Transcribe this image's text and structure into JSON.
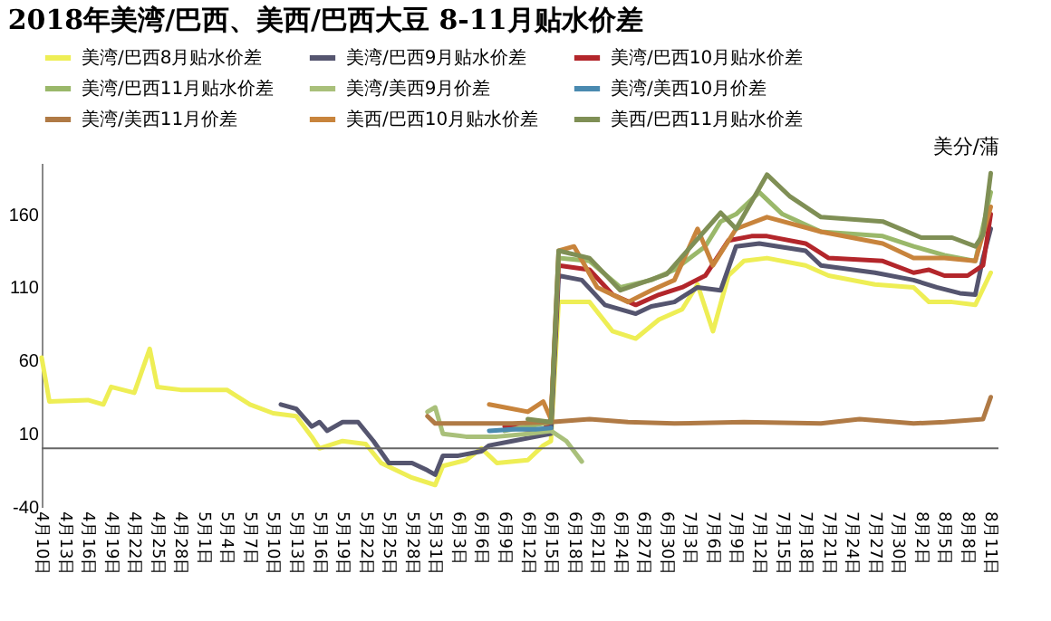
{
  "chart_data": {
    "type": "line",
    "title": "2018年美湾/巴西、美西/巴西大豆 8-11月贴水价差",
    "ylabel": "美分/蒲",
    "xlim": [
      "2018-04-10",
      "2018-08-12"
    ],
    "ylim": [
      -40,
      195
    ],
    "yticks": [
      -40,
      10,
      60,
      110,
      160
    ],
    "xticks": [
      {
        "value": "2018-04-10",
        "label": "4月10日"
      },
      {
        "value": "2018-04-13",
        "label": "4月13日"
      },
      {
        "value": "2018-04-16",
        "label": "4月16日"
      },
      {
        "value": "2018-04-19",
        "label": "4月19日"
      },
      {
        "value": "2018-04-22",
        "label": "4月22日"
      },
      {
        "value": "2018-04-25",
        "label": "4月25日"
      },
      {
        "value": "2018-04-28",
        "label": "4月28日"
      },
      {
        "value": "2018-05-01",
        "label": "5月1日"
      },
      {
        "value": "2018-05-04",
        "label": "5月4日"
      },
      {
        "value": "2018-05-07",
        "label": "5月7日"
      },
      {
        "value": "2018-05-10",
        "label": "5月10日"
      },
      {
        "value": "2018-05-13",
        "label": "5月13日"
      },
      {
        "value": "2018-05-16",
        "label": "5月16日"
      },
      {
        "value": "2018-05-19",
        "label": "5月19日"
      },
      {
        "value": "2018-05-22",
        "label": "5月22日"
      },
      {
        "value": "2018-05-25",
        "label": "5月25日"
      },
      {
        "value": "2018-05-28",
        "label": "5月28日"
      },
      {
        "value": "2018-05-31",
        "label": "5月31日"
      },
      {
        "value": "2018-06-03",
        "label": "6月3日"
      },
      {
        "value": "2018-06-06",
        "label": "6月6日"
      },
      {
        "value": "2018-06-09",
        "label": "6月9日"
      },
      {
        "value": "2018-06-12",
        "label": "6月12日"
      },
      {
        "value": "2018-06-15",
        "label": "6月15日"
      },
      {
        "value": "2018-06-18",
        "label": "6月18日"
      },
      {
        "value": "2018-06-21",
        "label": "6月21日"
      },
      {
        "value": "2018-06-24",
        "label": "6月24日"
      },
      {
        "value": "2018-06-27",
        "label": "6月27日"
      },
      {
        "value": "2018-06-30",
        "label": "6月30日"
      },
      {
        "value": "2018-07-03",
        "label": "7月3日"
      },
      {
        "value": "2018-07-06",
        "label": "7月6日"
      },
      {
        "value": "2018-07-09",
        "label": "7月9日"
      },
      {
        "value": "2018-07-12",
        "label": "7月12日"
      },
      {
        "value": "2018-07-15",
        "label": "7月15日"
      },
      {
        "value": "2018-07-18",
        "label": "7月18日"
      },
      {
        "value": "2018-07-21",
        "label": "7月21日"
      },
      {
        "value": "2018-07-24",
        "label": "7月24日"
      },
      {
        "value": "2018-07-27",
        "label": "7月27日"
      },
      {
        "value": "2018-07-30",
        "label": "7月30日"
      },
      {
        "value": "2018-08-02",
        "label": "8月2日"
      },
      {
        "value": "2018-08-05",
        "label": "8月5日"
      },
      {
        "value": "2018-08-08",
        "label": "8月8日"
      },
      {
        "value": "2018-08-11",
        "label": "8月11日"
      }
    ],
    "grid": false,
    "legend": "top",
    "marker": "none",
    "line_style": "solid",
    "ref_lines": [
      {
        "axis": "y",
        "value": 0,
        "color": "#666666"
      }
    ],
    "series": [
      {
        "name": "美湾/巴西8月贴水价差",
        "color": "#eeee55",
        "x": [
          "2018-04-10",
          "2018-04-11",
          "2018-04-16",
          "2018-04-18",
          "2018-04-19",
          "2018-04-22",
          "2018-04-24",
          "2018-04-25",
          "2018-04-28",
          "2018-05-04",
          "2018-05-07",
          "2018-05-10",
          "2018-05-13",
          "2018-05-15",
          "2018-05-16",
          "2018-05-19",
          "2018-05-22",
          "2018-05-24",
          "2018-05-28",
          "2018-05-31",
          "2018-06-01",
          "2018-06-04",
          "2018-06-06",
          "2018-06-08",
          "2018-06-12",
          "2018-06-14",
          "2018-06-15",
          "2018-06-16",
          "2018-06-20",
          "2018-06-23",
          "2018-06-26",
          "2018-06-29",
          "2018-07-02",
          "2018-07-04",
          "2018-07-06",
          "2018-07-08",
          "2018-07-10",
          "2018-07-13",
          "2018-07-18",
          "2018-07-21",
          "2018-07-27",
          "2018-08-01",
          "2018-08-03",
          "2018-08-06",
          "2018-08-09",
          "2018-08-11"
        ],
        "values": [
          62,
          32,
          33,
          30,
          42,
          38,
          68,
          42,
          40,
          40,
          30,
          24,
          22,
          8,
          0,
          5,
          3,
          -10,
          -20,
          -25,
          -12,
          -8,
          0,
          -10,
          -8,
          2,
          5,
          100,
          100,
          80,
          75,
          88,
          95,
          112,
          80,
          118,
          128,
          130,
          125,
          118,
          112,
          110,
          100,
          100,
          98,
          120
        ]
      },
      {
        "name": "美湾/巴西9月贴水价差",
        "color": "#55556f",
        "x": [
          "2018-05-11",
          "2018-05-13",
          "2018-05-15",
          "2018-05-16",
          "2018-05-17",
          "2018-05-19",
          "2018-05-21",
          "2018-05-23",
          "2018-05-25",
          "2018-05-28",
          "2018-05-30",
          "2018-05-31",
          "2018-06-01",
          "2018-06-03",
          "2018-06-06",
          "2018-06-07",
          "2018-06-10",
          "2018-06-13",
          "2018-06-15",
          "2018-06-16",
          "2018-06-19",
          "2018-06-22",
          "2018-06-26",
          "2018-06-28",
          "2018-07-01",
          "2018-07-04",
          "2018-07-07",
          "2018-07-09",
          "2018-07-12",
          "2018-07-18",
          "2018-07-20",
          "2018-07-27",
          "2018-08-01",
          "2018-08-04",
          "2018-08-07",
          "2018-08-09",
          "2018-08-10",
          "2018-08-11"
        ],
        "values": [
          30,
          27,
          15,
          18,
          12,
          18,
          18,
          5,
          -10,
          -10,
          -15,
          -18,
          -5,
          -5,
          -2,
          2,
          5,
          8,
          10,
          118,
          115,
          98,
          92,
          97,
          100,
          110,
          108,
          138,
          140,
          135,
          125,
          120,
          115,
          110,
          106,
          105,
          130,
          150
        ]
      },
      {
        "name": "美湾/巴西10月贴水价差",
        "color": "#b3262b",
        "x": [
          "2018-06-09",
          "2018-06-12",
          "2018-06-14",
          "2018-06-15",
          "2018-06-16",
          "2018-06-20",
          "2018-06-23",
          "2018-06-26",
          "2018-06-29",
          "2018-07-02",
          "2018-07-05",
          "2018-07-08",
          "2018-07-11",
          "2018-07-13",
          "2018-07-18",
          "2018-07-21",
          "2018-07-28",
          "2018-08-01",
          "2018-08-03",
          "2018-08-05",
          "2018-08-08",
          "2018-08-10",
          "2018-08-11"
        ],
        "values": [
          15,
          13,
          12,
          20,
          125,
          122,
          105,
          98,
          105,
          110,
          118,
          142,
          145,
          145,
          140,
          130,
          128,
          120,
          122,
          118,
          118,
          125,
          160
        ]
      },
      {
        "name": "美湾/巴西11月贴水价差",
        "color": "#9ab86a",
        "x": [
          "2018-06-09",
          "2018-06-15",
          "2018-06-16",
          "2018-06-20",
          "2018-06-24",
          "2018-06-28",
          "2018-07-01",
          "2018-07-05",
          "2018-07-07",
          "2018-07-09",
          "2018-07-12",
          "2018-07-15",
          "2018-07-20",
          "2018-07-28",
          "2018-08-01",
          "2018-08-05",
          "2018-08-09",
          "2018-08-11"
        ],
        "values": [
          12,
          18,
          130,
          128,
          110,
          115,
          122,
          138,
          155,
          160,
          175,
          160,
          148,
          145,
          138,
          132,
          128,
          175
        ]
      },
      {
        "name": "美湾/美西9月价差",
        "color": "#a9c07a",
        "x": [
          "2018-05-30",
          "2018-05-31",
          "2018-06-01",
          "2018-06-04",
          "2018-06-08",
          "2018-06-12",
          "2018-06-15",
          "2018-06-17",
          "2018-06-19"
        ],
        "values": [
          25,
          28,
          10,
          8,
          8,
          10,
          12,
          5,
          -9
        ]
      },
      {
        "name": "美湾/美西10月价差",
        "color": "#4a8ab0",
        "x": [
          "2018-06-07",
          "2018-06-10",
          "2018-06-13",
          "2018-06-15"
        ],
        "values": [
          12,
          13,
          13,
          14
        ]
      },
      {
        "name": "美湾/美西11月价差",
        "color": "#b07a45",
        "x": [
          "2018-05-30",
          "2018-05-31",
          "2018-06-05",
          "2018-06-10",
          "2018-06-15",
          "2018-06-20",
          "2018-06-25",
          "2018-07-01",
          "2018-07-10",
          "2018-07-20",
          "2018-07-25",
          "2018-08-01",
          "2018-08-05",
          "2018-08-10",
          "2018-08-11"
        ],
        "values": [
          22,
          17,
          17,
          17,
          18,
          20,
          18,
          17,
          18,
          17,
          20,
          17,
          18,
          20,
          35
        ]
      },
      {
        "name": "美西/巴西10月贴水价差",
        "color": "#c8843c",
        "x": [
          "2018-06-07",
          "2018-06-09",
          "2018-06-12",
          "2018-06-14",
          "2018-06-15",
          "2018-06-16",
          "2018-06-18",
          "2018-06-21",
          "2018-06-25",
          "2018-06-28",
          "2018-07-01",
          "2018-07-04",
          "2018-07-06",
          "2018-07-09",
          "2018-07-13",
          "2018-07-20",
          "2018-07-28",
          "2018-08-01",
          "2018-08-05",
          "2018-08-09",
          "2018-08-11"
        ],
        "values": [
          30,
          28,
          25,
          32,
          20,
          135,
          138,
          110,
          100,
          108,
          115,
          150,
          125,
          150,
          158,
          148,
          140,
          130,
          130,
          128,
          165
        ]
      },
      {
        "name": "美西/巴西11月贴水价差",
        "color": "#7f8f55",
        "x": [
          "2018-06-12",
          "2018-06-15",
          "2018-06-16",
          "2018-06-20",
          "2018-06-24",
          "2018-06-30",
          "2018-07-07",
          "2018-07-09",
          "2018-07-13",
          "2018-07-16",
          "2018-07-20",
          "2018-07-28",
          "2018-08-02",
          "2018-08-06",
          "2018-08-09",
          "2018-08-10",
          "2018-08-11"
        ],
        "values": [
          20,
          18,
          135,
          130,
          108,
          119,
          161,
          150,
          187,
          172,
          158,
          155,
          144,
          144,
          138,
          146,
          188
        ]
      }
    ]
  }
}
